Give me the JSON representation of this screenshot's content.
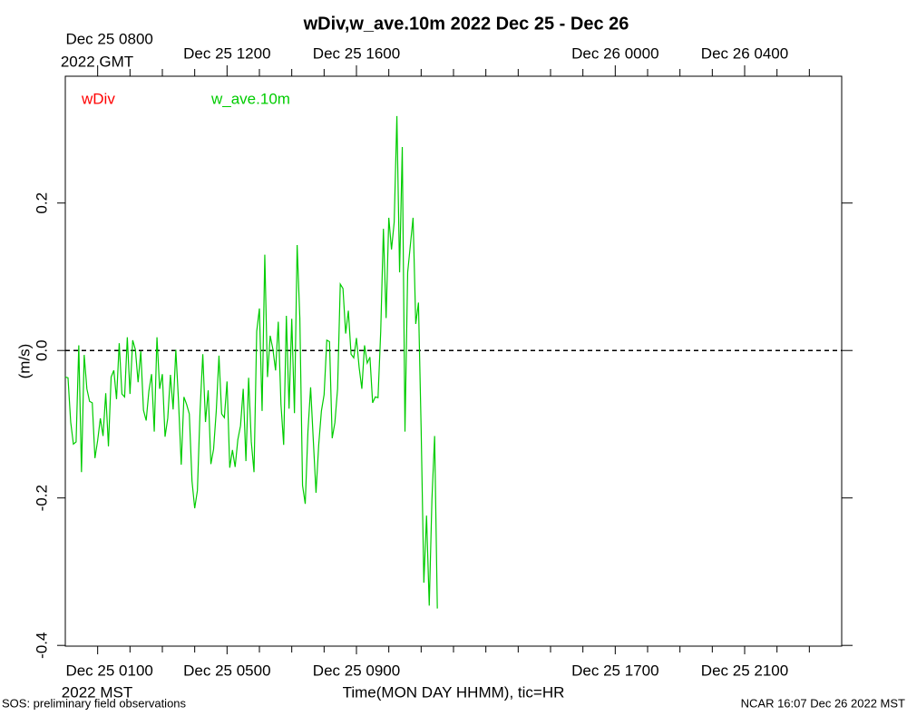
{
  "chart_data": {
    "type": "line",
    "title": "wDiv,w_ave.10m 2022 Dec 25 - Dec 26",
    "xlabel": "Time(MON DAY HHMM), tic=HR",
    "ylabel": "(m/s)",
    "x_zone_label": "2022 MST",
    "x2_zone_label": "2022 GMT",
    "footer_left": "SOS: preliminary field observations",
    "footer_right": "NCAR 16:07 Dec 26 2022 MST",
    "legend": "upper left",
    "hline": 0,
    "xlim": [
      "2022-12-25T00:00",
      "2022-12-26T00:00"
    ],
    "xticks": [
      {
        "value": "2022-12-25T01:00",
        "label": "Dec 25 0100"
      },
      {
        "value": "2022-12-25T05:00",
        "label": "Dec 25 0500"
      },
      {
        "value": "2022-12-25T09:00",
        "label": "Dec 25 0900"
      },
      {
        "value": "2022-12-25T17:00",
        "label": "Dec 25 1700"
      },
      {
        "value": "2022-12-25T21:00",
        "label": "Dec 25 2100"
      }
    ],
    "x2ticks": [
      {
        "value": "2022-12-25T01:00",
        "label": "Dec 25 0800"
      },
      {
        "value": "2022-12-25T05:00",
        "label": "Dec 25 1200"
      },
      {
        "value": "2022-12-25T09:00",
        "label": "Dec 25 1600"
      },
      {
        "value": "2022-12-25T17:00",
        "label": "Dec 26 0000"
      },
      {
        "value": "2022-12-25T21:00",
        "label": "Dec 26 0400"
      }
    ],
    "xminor_ticks": [
      "2022-12-25T02:00",
      "2022-12-25T03:00",
      "2022-12-25T04:00",
      "2022-12-25T06:00",
      "2022-12-25T07:00",
      "2022-12-25T08:00",
      "2022-12-25T10:00",
      "2022-12-25T11:00",
      "2022-12-25T12:00",
      "2022-12-25T13:00",
      "2022-12-25T14:00",
      "2022-12-25T15:00",
      "2022-12-25T16:00",
      "2022-12-25T18:00",
      "2022-12-25T19:00",
      "2022-12-25T20:00",
      "2022-12-25T22:00",
      "2022-12-25T23:00"
    ],
    "ylim": [
      -0.401,
      0.372
    ],
    "yticks": [
      {
        "value": -0.4,
        "label": "-0.4"
      },
      {
        "value": -0.2,
        "label": "-0.2"
      },
      {
        "value": 0,
        "label": "0.0"
      },
      {
        "value": 0.2,
        "label": "0.2"
      }
    ],
    "x": [
      "2022-12-25T00:00",
      "2022-12-25T00:05",
      "2022-12-25T00:10",
      "2022-12-25T00:15",
      "2022-12-25T00:20",
      "2022-12-25T00:25",
      "2022-12-25T00:30",
      "2022-12-25T00:35",
      "2022-12-25T00:40",
      "2022-12-25T00:45",
      "2022-12-25T00:50",
      "2022-12-25T00:55",
      "2022-12-25T01:00",
      "2022-12-25T01:05",
      "2022-12-25T01:10",
      "2022-12-25T01:15",
      "2022-12-25T01:20",
      "2022-12-25T01:25",
      "2022-12-25T01:30",
      "2022-12-25T01:35",
      "2022-12-25T01:40",
      "2022-12-25T01:45",
      "2022-12-25T01:50",
      "2022-12-25T01:55",
      "2022-12-25T02:00",
      "2022-12-25T02:05",
      "2022-12-25T02:10",
      "2022-12-25T02:15",
      "2022-12-25T02:20",
      "2022-12-25T02:25",
      "2022-12-25T02:30",
      "2022-12-25T02:35",
      "2022-12-25T02:40",
      "2022-12-25T02:45",
      "2022-12-25T02:50",
      "2022-12-25T02:55",
      "2022-12-25T03:00",
      "2022-12-25T03:05",
      "2022-12-25T03:10",
      "2022-12-25T03:15",
      "2022-12-25T03:20",
      "2022-12-25T03:25",
      "2022-12-25T03:30",
      "2022-12-25T03:35",
      "2022-12-25T03:40",
      "2022-12-25T03:45",
      "2022-12-25T03:50",
      "2022-12-25T03:55",
      "2022-12-25T04:00",
      "2022-12-25T04:05",
      "2022-12-25T04:10",
      "2022-12-25T04:15",
      "2022-12-25T04:20",
      "2022-12-25T04:25",
      "2022-12-25T04:30",
      "2022-12-25T04:35",
      "2022-12-25T04:40",
      "2022-12-25T04:45",
      "2022-12-25T04:50",
      "2022-12-25T04:55",
      "2022-12-25T05:00",
      "2022-12-25T05:05",
      "2022-12-25T05:10",
      "2022-12-25T05:15",
      "2022-12-25T05:20",
      "2022-12-25T05:25",
      "2022-12-25T05:30",
      "2022-12-25T05:35",
      "2022-12-25T05:40",
      "2022-12-25T05:45",
      "2022-12-25T05:50",
      "2022-12-25T05:55",
      "2022-12-25T06:00",
      "2022-12-25T06:05",
      "2022-12-25T06:10",
      "2022-12-25T06:15",
      "2022-12-25T06:20",
      "2022-12-25T06:25",
      "2022-12-25T06:30",
      "2022-12-25T06:35",
      "2022-12-25T06:40",
      "2022-12-25T06:45",
      "2022-12-25T06:50",
      "2022-12-25T06:55",
      "2022-12-25T07:00",
      "2022-12-25T07:05",
      "2022-12-25T07:10",
      "2022-12-25T07:15",
      "2022-12-25T07:20",
      "2022-12-25T07:25",
      "2022-12-25T07:30",
      "2022-12-25T07:35",
      "2022-12-25T07:40",
      "2022-12-25T07:45",
      "2022-12-25T07:50",
      "2022-12-25T07:55",
      "2022-12-25T08:00",
      "2022-12-25T08:05",
      "2022-12-25T08:10",
      "2022-12-25T08:15",
      "2022-12-25T08:20",
      "2022-12-25T08:25",
      "2022-12-25T08:30",
      "2022-12-25T08:35",
      "2022-12-25T08:40",
      "2022-12-25T08:45",
      "2022-12-25T08:50",
      "2022-12-25T08:55",
      "2022-12-25T09:00",
      "2022-12-25T09:05",
      "2022-12-25T09:10",
      "2022-12-25T09:15",
      "2022-12-25T09:20",
      "2022-12-25T09:25",
      "2022-12-25T09:30",
      "2022-12-25T09:35",
      "2022-12-25T09:40",
      "2022-12-25T09:45",
      "2022-12-25T09:50",
      "2022-12-25T09:55",
      "2022-12-25T10:00",
      "2022-12-25T10:05",
      "2022-12-25T10:10",
      "2022-12-25T10:15",
      "2022-12-25T10:20",
      "2022-12-25T10:25",
      "2022-12-25T10:30",
      "2022-12-25T10:35",
      "2022-12-25T10:40",
      "2022-12-25T10:45",
      "2022-12-25T10:50",
      "2022-12-25T10:55",
      "2022-12-25T11:00",
      "2022-12-25T11:05",
      "2022-12-25T11:10",
      "2022-12-25T11:15",
      "2022-12-25T11:20",
      "2022-12-25T11:25",
      "2022-12-25T11:30"
    ],
    "series": [
      {
        "name": "wDiv",
        "color": "#ff0000",
        "values": [
          null,
          null,
          null,
          null,
          null,
          null,
          null,
          null,
          null,
          null,
          null,
          null,
          null,
          null,
          null,
          null,
          null,
          null,
          null,
          null,
          null,
          null,
          null,
          null,
          null,
          null,
          null,
          null,
          null,
          null,
          null,
          null,
          null,
          null,
          null,
          null,
          null,
          null,
          null,
          null,
          null,
          null,
          null,
          null,
          null,
          null,
          null,
          null,
          null,
          null,
          null,
          null,
          null,
          null,
          null,
          null,
          null,
          null,
          null,
          null,
          null,
          null,
          null,
          null,
          null,
          null,
          null,
          null,
          null,
          null,
          null,
          null,
          null,
          null,
          null,
          null,
          null,
          null,
          null,
          null,
          null,
          null,
          null,
          null,
          null,
          null,
          null,
          null,
          null,
          null,
          null,
          null,
          null,
          null,
          null,
          null,
          null,
          null,
          null,
          null,
          null,
          null,
          null,
          null,
          null,
          null,
          null,
          null,
          null,
          null,
          null,
          null,
          null,
          null,
          null,
          null,
          null,
          null,
          null,
          null,
          null,
          null,
          null,
          null,
          null,
          null,
          null,
          null,
          null,
          null,
          null,
          null,
          null,
          null,
          null,
          null,
          null,
          null,
          null
        ]
      },
      {
        "name": "w_ave.10m",
        "color": "#00cc00",
        "values": [
          -0.036,
          -0.037,
          -0.097,
          -0.127,
          -0.124,
          0.007,
          -0.165,
          -0.006,
          -0.052,
          -0.069,
          -0.071,
          -0.146,
          -0.122,
          -0.092,
          -0.116,
          -0.058,
          -0.13,
          -0.036,
          -0.027,
          -0.066,
          0.01,
          -0.059,
          -0.063,
          0.018,
          -0.059,
          0.014,
          0.001,
          -0.043,
          -0.001,
          -0.081,
          -0.095,
          -0.055,
          -0.032,
          -0.11,
          0.018,
          -0.052,
          -0.032,
          -0.117,
          -0.092,
          -0.033,
          -0.08,
          0.001,
          -0.069,
          -0.155,
          -0.063,
          -0.073,
          -0.086,
          -0.177,
          -0.214,
          -0.19,
          -0.081,
          -0.005,
          -0.097,
          -0.054,
          -0.154,
          -0.134,
          -0.082,
          -0.007,
          -0.086,
          -0.091,
          -0.042,
          -0.159,
          -0.135,
          -0.158,
          -0.121,
          -0.102,
          -0.052,
          -0.15,
          -0.037,
          -0.124,
          -0.165,
          0.026,
          0.057,
          -0.082,
          0.13,
          -0.036,
          0.02,
          0.002,
          -0.027,
          0.039,
          -0.073,
          -0.128,
          0.047,
          -0.079,
          0.043,
          -0.085,
          0.143,
          0.044,
          -0.183,
          -0.208,
          -0.11,
          -0.05,
          -0.122,
          -0.193,
          -0.128,
          -0.082,
          -0.06,
          0.014,
          0.012,
          -0.119,
          -0.098,
          -0.052,
          0.09,
          0.084,
          0.023,
          0.054,
          -0.005,
          -0.01,
          0.017,
          -0.023,
          -0.052,
          0.007,
          -0.017,
          -0.009,
          -0.071,
          -0.063,
          -0.064,
          0.026,
          0.165,
          0.044,
          0.18,
          0.137,
          0.174,
          0.318,
          0.106,
          0.276,
          -0.11,
          0.106,
          0.143,
          0.18,
          0.036,
          0.065,
          -0.107,
          -0.315,
          -0.224,
          -0.346,
          -0.202,
          -0.116,
          -0.35
        ]
      }
    ]
  }
}
